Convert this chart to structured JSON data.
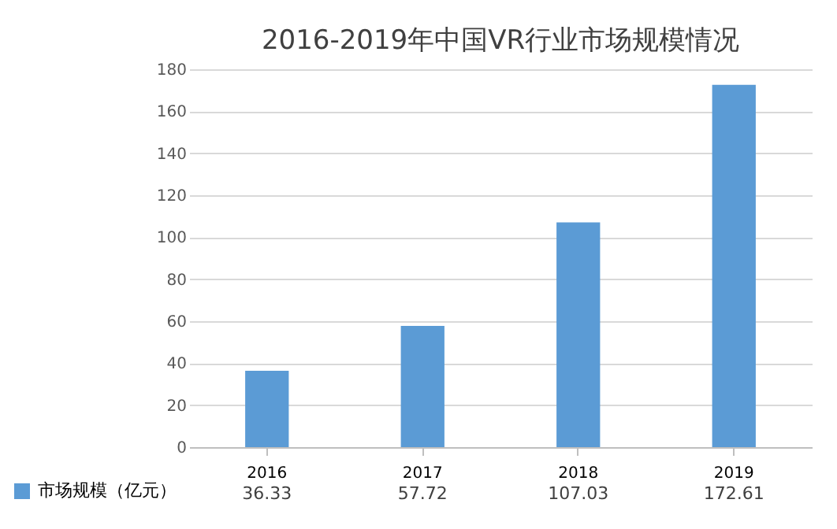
{
  "chart_data": {
    "type": "bar",
    "title": "2016-2019年中国VR行业市场规模情况",
    "categories": [
      "2016",
      "2017",
      "2018",
      "2019"
    ],
    "series": [
      {
        "name": "市场规模（亿元）",
        "color": "#5b9bd5",
        "values": [
          36.33,
          57.72,
          107.03,
          172.61
        ]
      }
    ],
    "ylim": [
      0,
      180
    ],
    "yticks": [
      0,
      20,
      40,
      60,
      80,
      100,
      120,
      140,
      160,
      180
    ],
    "grid": "y",
    "legend": "bottom",
    "data_labels": true
  }
}
